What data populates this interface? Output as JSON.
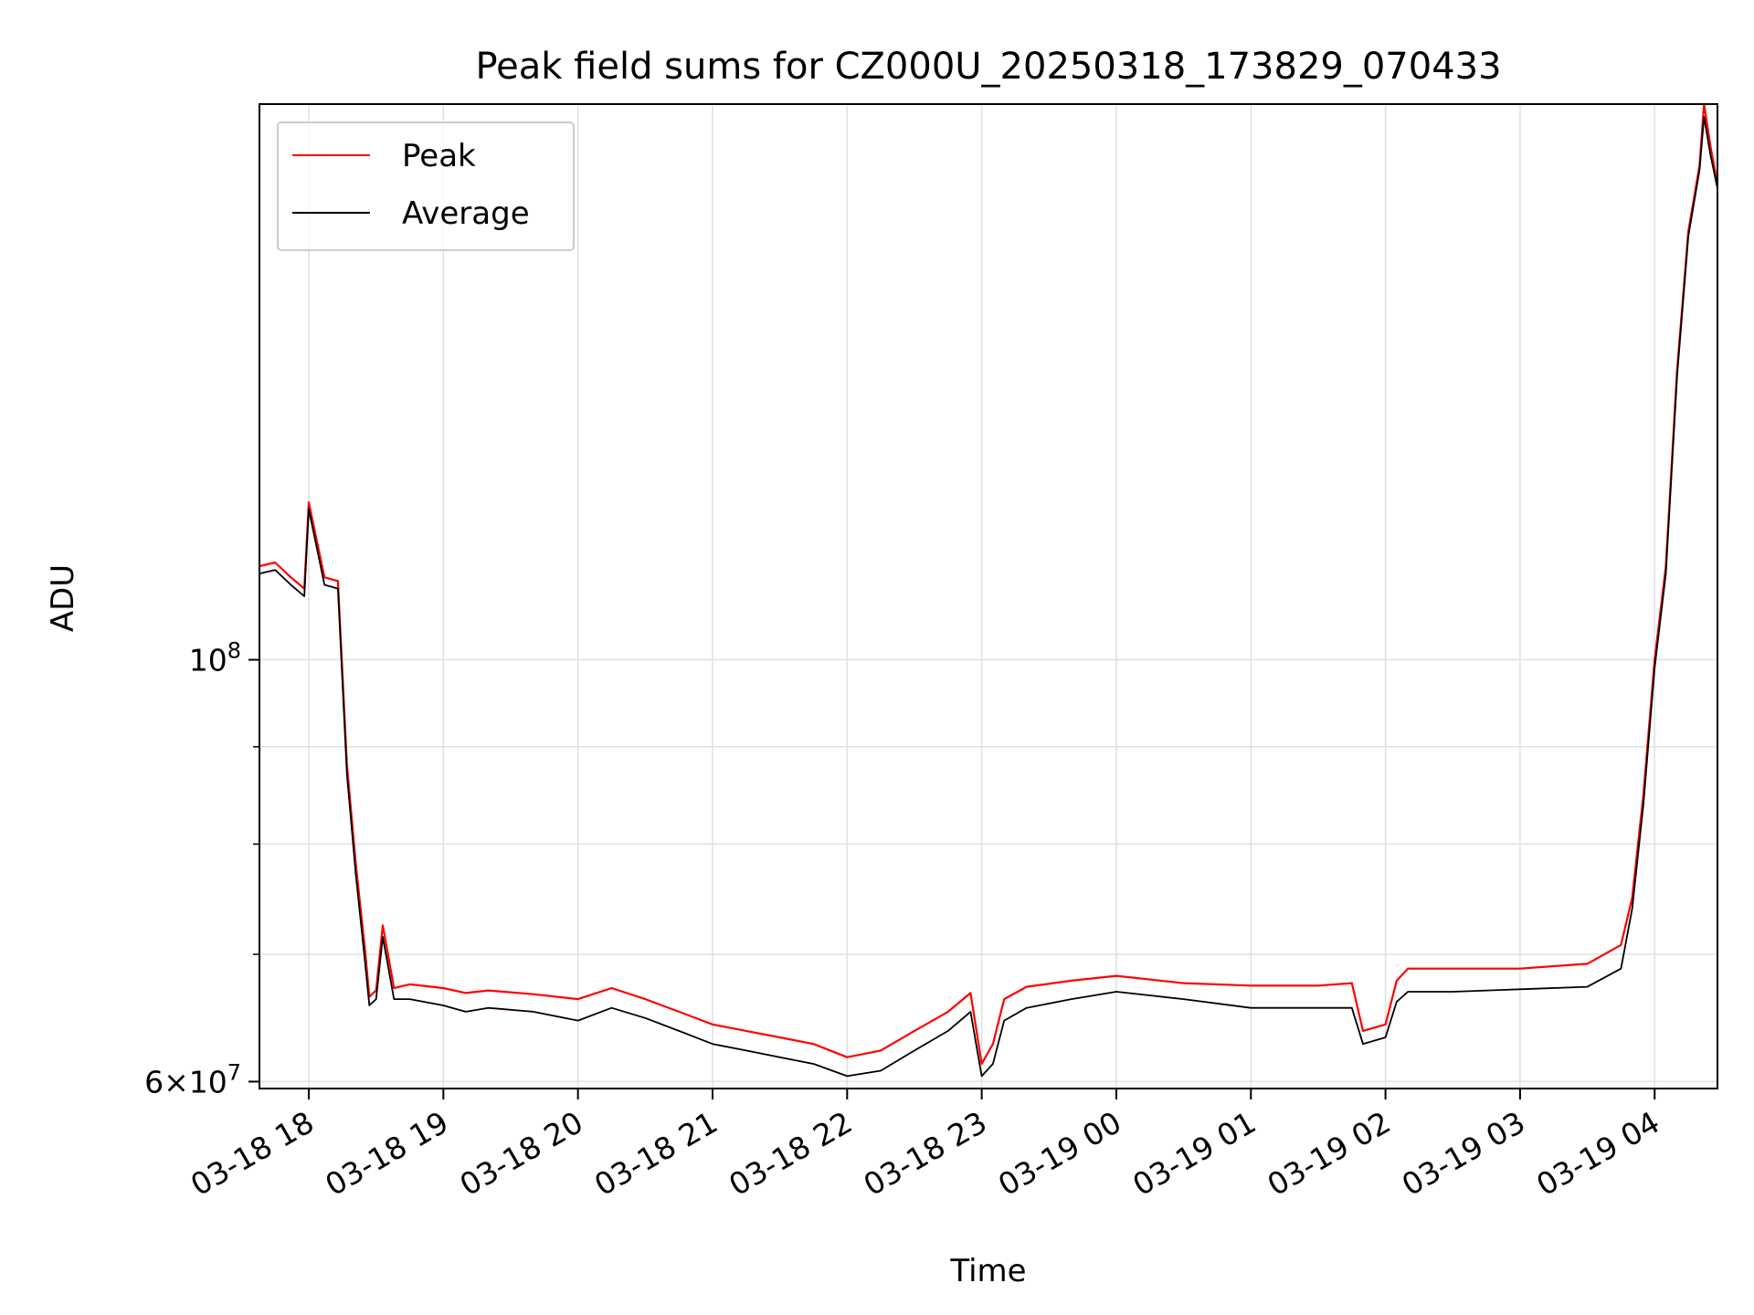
{
  "chart_data": {
    "type": "line",
    "title": "Peak field sums for CZ000U_20250318_173829_070433",
    "xlabel": "Time",
    "ylabel": "ADU",
    "yscale": "log",
    "ylim": [
      59500000,
      196000000
    ],
    "xlim": [
      "03-18 17:38",
      "03-19 04:28"
    ],
    "grid": true,
    "legend_position": "upper-left",
    "x_tick_labels": [
      "03-18 18",
      "03-18 19",
      "03-18 20",
      "03-18 21",
      "03-18 22",
      "03-18 23",
      "03-19 00",
      "03-19 01",
      "03-19 02",
      "03-19 03",
      "03-19 04"
    ],
    "y_tick_labels": [
      {
        "value": 100000000,
        "base": "10",
        "exp": "8"
      },
      {
        "value": 60000000,
        "mant": "6",
        "times": "×",
        "base": "10",
        "exp": "7"
      }
    ],
    "x": [
      "03-18 17:38",
      "03-18 17:45",
      "03-18 17:52",
      "03-18 17:58",
      "03-18 18:00",
      "03-18 18:07",
      "03-18 18:13",
      "03-18 18:17",
      "03-18 18:21",
      "03-18 18:25",
      "03-18 18:27",
      "03-18 18:30",
      "03-18 18:33",
      "03-18 18:38",
      "03-18 18:45",
      "03-18 19:00",
      "03-18 19:10",
      "03-18 19:20",
      "03-18 19:40",
      "03-18 20:00",
      "03-18 20:15",
      "03-18 20:30",
      "03-18 20:45",
      "03-18 21:00",
      "03-18 21:15",
      "03-18 21:30",
      "03-18 21:45",
      "03-18 22:00",
      "03-18 22:15",
      "03-18 22:30",
      "03-18 22:45",
      "03-18 22:55",
      "03-18 23:00",
      "03-18 23:05",
      "03-18 23:10",
      "03-18 23:20",
      "03-18 23:40",
      "03-19 00:00",
      "03-19 00:30",
      "03-19 01:00",
      "03-19 01:30",
      "03-19 01:45",
      "03-19 01:50",
      "03-19 02:00",
      "03-19 02:05",
      "03-19 02:10",
      "03-19 02:30",
      "03-19 03:00",
      "03-19 03:30",
      "03-19 03:45",
      "03-19 03:50",
      "03-19 03:55",
      "03-19 04:00",
      "03-19 04:05",
      "03-19 04:10",
      "03-19 04:15",
      "03-19 04:20",
      "03-19 04:22",
      "03-19 04:25",
      "03-19 04:28"
    ],
    "series": [
      {
        "name": "Peak",
        "color": "#ff0000",
        "values": [
          112000000,
          112500000,
          110500000,
          109000000,
          121000000,
          110500000,
          110000000,
          88000000,
          78000000,
          70500000,
          66500000,
          67000000,
          72500000,
          67200000,
          67500000,
          67200000,
          66800000,
          67000000,
          66700000,
          66300000,
          67200000,
          66300000,
          65300000,
          64300000,
          63800000,
          63300000,
          62800000,
          61800000,
          62300000,
          63800000,
          65300000,
          66800000,
          61300000,
          62800000,
          66300000,
          67300000,
          67800000,
          68200000,
          67600000,
          67400000,
          67400000,
          67600000,
          63800000,
          64300000,
          67800000,
          68800000,
          68800000,
          68800000,
          69200000,
          70800000,
          75000000,
          85000000,
          100000000,
          112000000,
          142000000,
          168000000,
          182000000,
          196000000,
          186000000,
          178000000
        ]
      },
      {
        "name": "Average",
        "color": "#000000",
        "values": [
          111000000,
          111500000,
          109500000,
          108000000,
          120000000,
          109500000,
          109000000,
          87000000,
          77000000,
          69500000,
          65800000,
          66300000,
          71500000,
          66300000,
          66300000,
          65800000,
          65300000,
          65600000,
          65300000,
          64600000,
          65600000,
          64800000,
          63800000,
          62800000,
          62300000,
          61800000,
          61300000,
          60400000,
          60800000,
          62300000,
          63800000,
          65300000,
          60400000,
          61300000,
          64600000,
          65600000,
          66300000,
          66900000,
          66300000,
          65600000,
          65600000,
          65600000,
          62800000,
          63300000,
          66100000,
          66900000,
          66900000,
          67100000,
          67300000,
          68800000,
          74000000,
          84000000,
          99000000,
          111000000,
          141000000,
          167000000,
          181000000,
          193000000,
          184000000,
          177000000
        ]
      }
    ]
  }
}
